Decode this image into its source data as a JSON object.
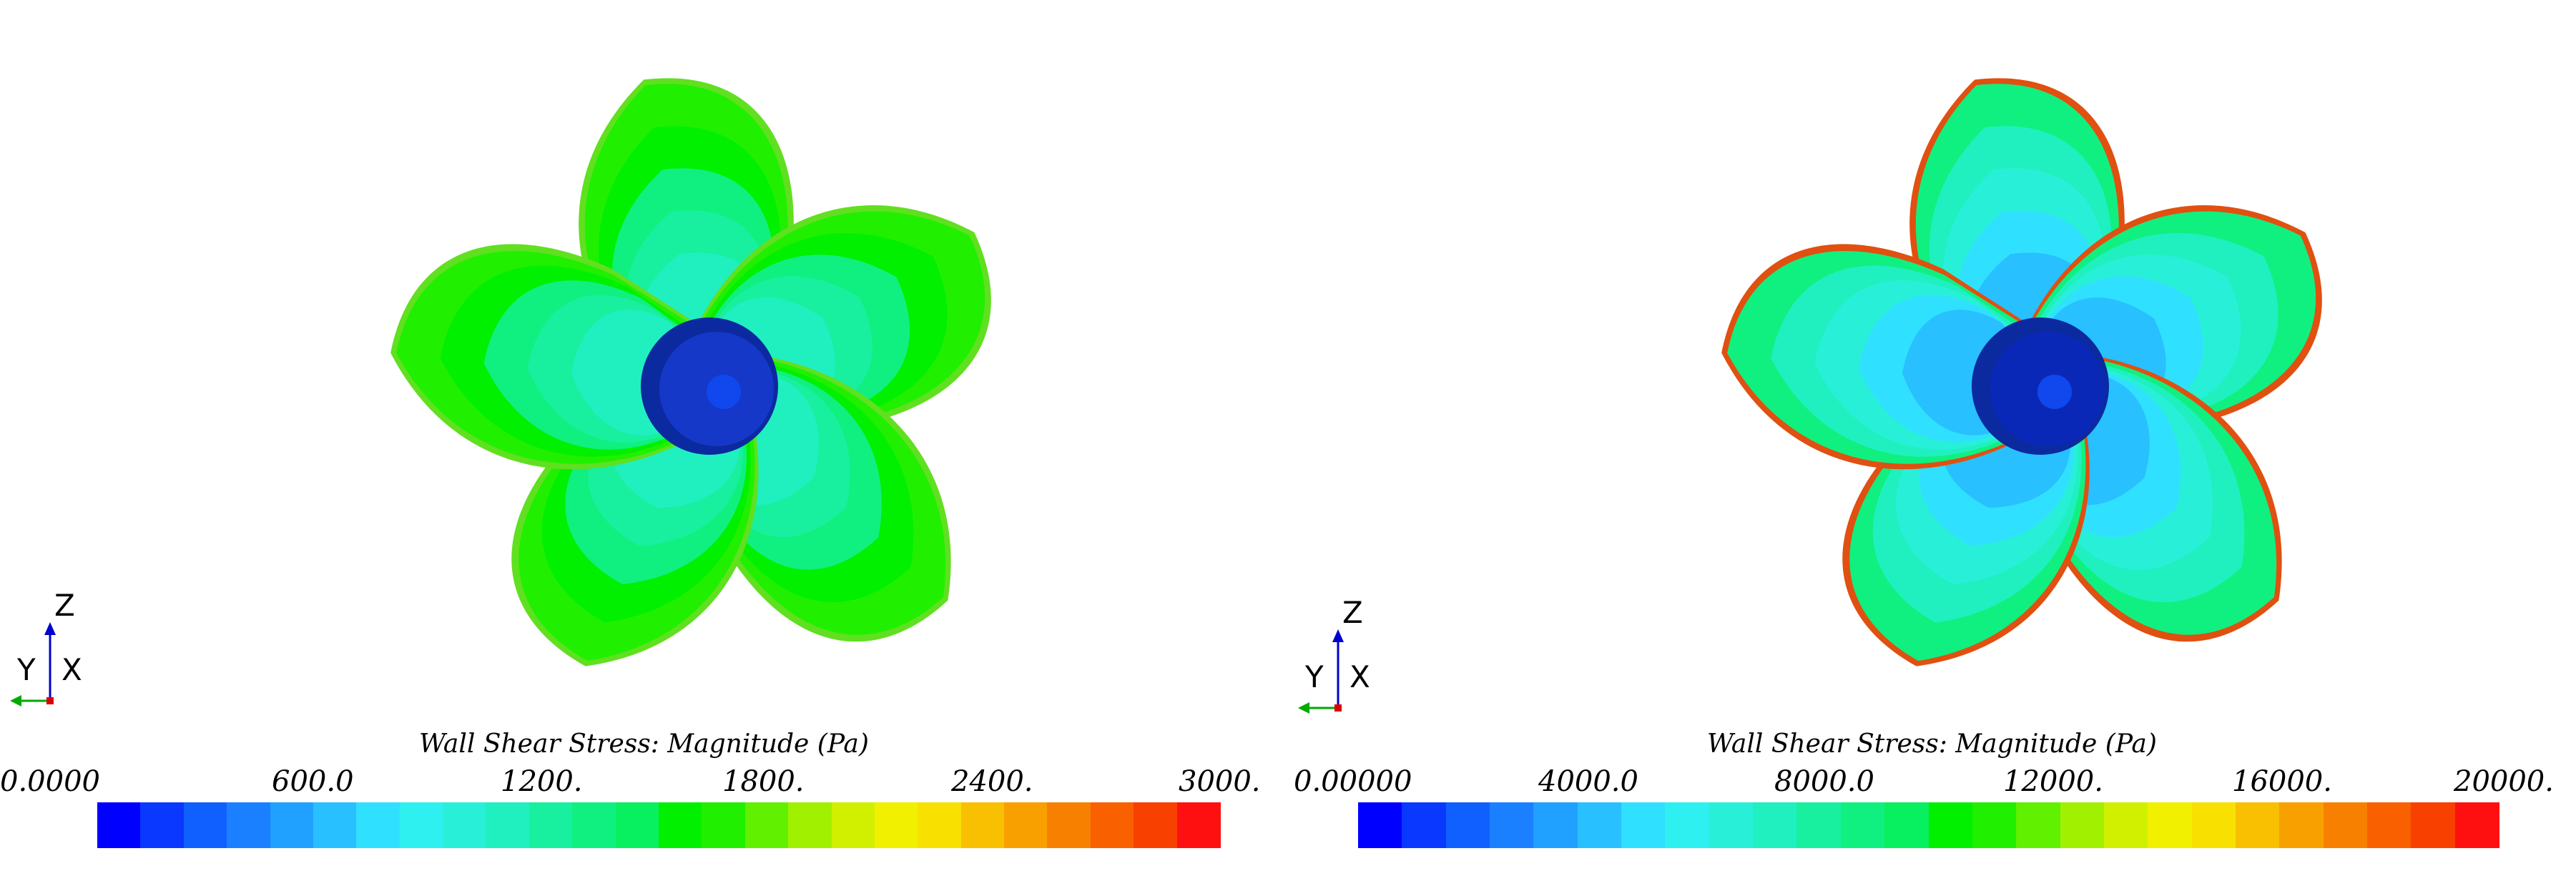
{
  "panels": [
    {
      "colorbar": {
        "title": "Wall Shear Stress: Magnitude (Pa)",
        "ticks": [
          "0.0000",
          "600.0",
          "1200.",
          "1800.",
          "2400.",
          "3000."
        ]
      },
      "axes": {
        "up": "Z",
        "left": "Y",
        "out": "X"
      },
      "contour_levels": [
        0.55,
        0.5,
        0.45,
        0.4,
        0.34
      ]
    },
    {
      "colorbar": {
        "title": "Wall Shear Stress: Magnitude (Pa)",
        "ticks": [
          "0.00000",
          "4000.0",
          "8000.0",
          "12000.",
          "16000.",
          "20000."
        ]
      },
      "axes": {
        "up": "Z",
        "left": "Y",
        "out": "X"
      },
      "contour_levels": [
        0.42,
        0.36,
        0.3,
        0.24,
        0.18
      ]
    }
  ],
  "colormap": [
    "#0000ff",
    "#0a38ff",
    "#1060ff",
    "#1a80ff",
    "#20a0ff",
    "#28c0ff",
    "#30e0ff",
    "#2ef0f0",
    "#28f0d8",
    "#20f0c0",
    "#18f0a0",
    "#10f080",
    "#08f060",
    "#00f000",
    "#20f000",
    "#60f000",
    "#a0f000",
    "#d0f000",
    "#f0f000",
    "#f8e000",
    "#f8c000",
    "#f8a000",
    "#f88000",
    "#f86000",
    "#f84000",
    "#ff1010"
  ]
}
